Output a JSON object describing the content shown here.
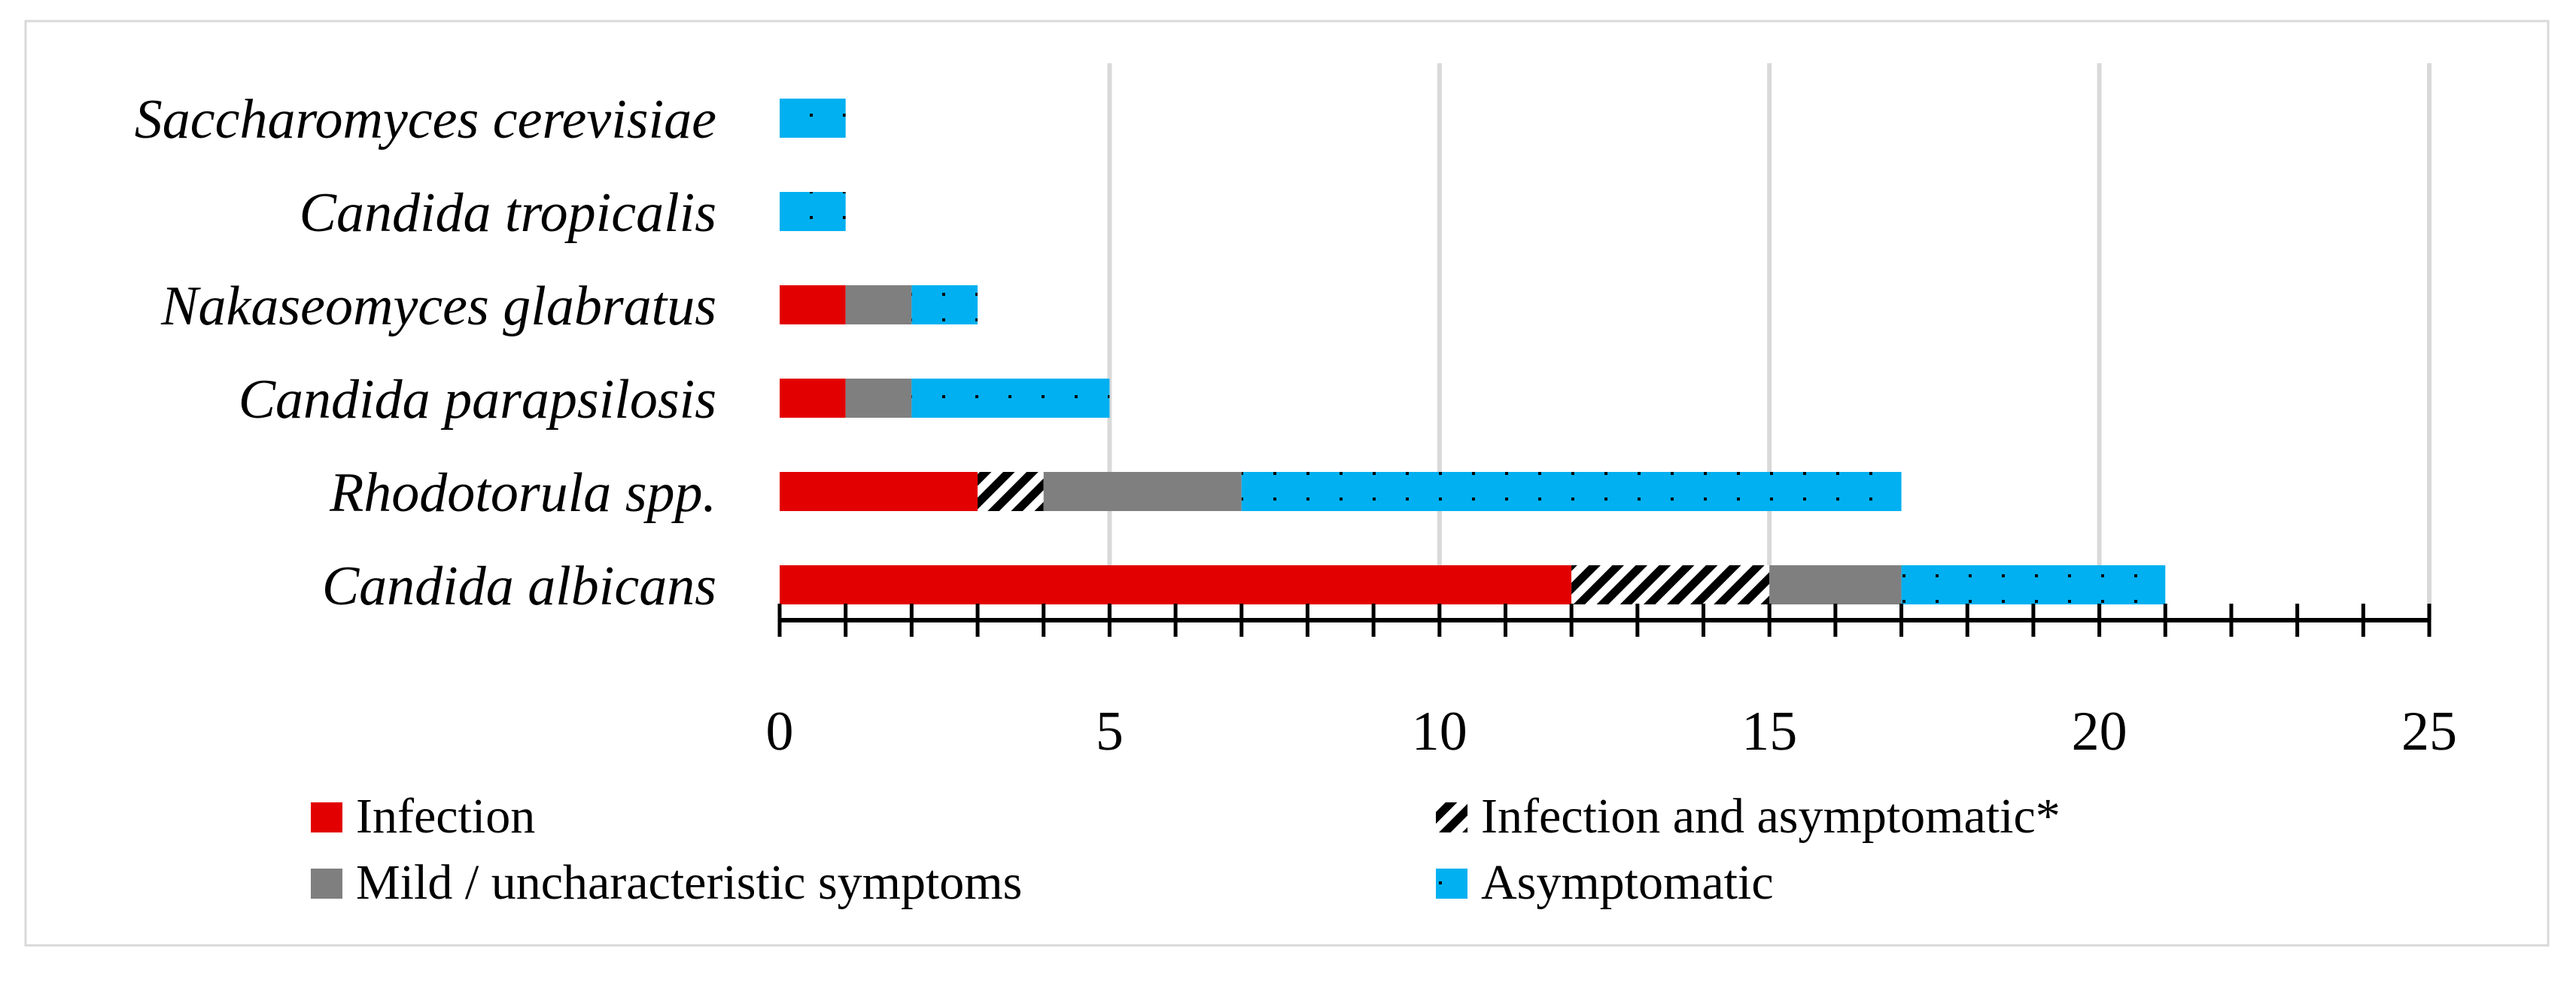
{
  "chart_data": {
    "type": "bar",
    "orientation": "horizontal",
    "stacked": true,
    "categories": [
      "Candida albicans",
      "Rhodotorula spp.",
      "Candida parapsilosis",
      "Nakaseomyces glabratus",
      "Candida tropicalis",
      "Saccharomyces cerevisiae"
    ],
    "series": [
      {
        "name": "Infection",
        "color": "#e20000",
        "pattern": "solid",
        "values": [
          12,
          3,
          1,
          1,
          0,
          0
        ]
      },
      {
        "name": "Infection and asymptomatic*",
        "color": "#000000",
        "pattern": "diagonal-stripes",
        "values": [
          3,
          1,
          0,
          0,
          0,
          0
        ]
      },
      {
        "name": "Mild / uncharacteristic symptoms",
        "color": "#7f7f7f",
        "pattern": "solid",
        "values": [
          2,
          3,
          1,
          1,
          0,
          0
        ]
      },
      {
        "name": "Asymptomatic",
        "color": "#00b0f0",
        "pattern": "dotted",
        "values": [
          4,
          10,
          3,
          1,
          1,
          1
        ]
      }
    ],
    "xlim": [
      0,
      25
    ],
    "major_ticks": [
      0,
      5,
      10,
      15,
      20,
      25
    ],
    "minor_tick_step": 1,
    "grid": true,
    "legend_position": "bottom",
    "title": "",
    "xlabel": "",
    "ylabel": ""
  }
}
